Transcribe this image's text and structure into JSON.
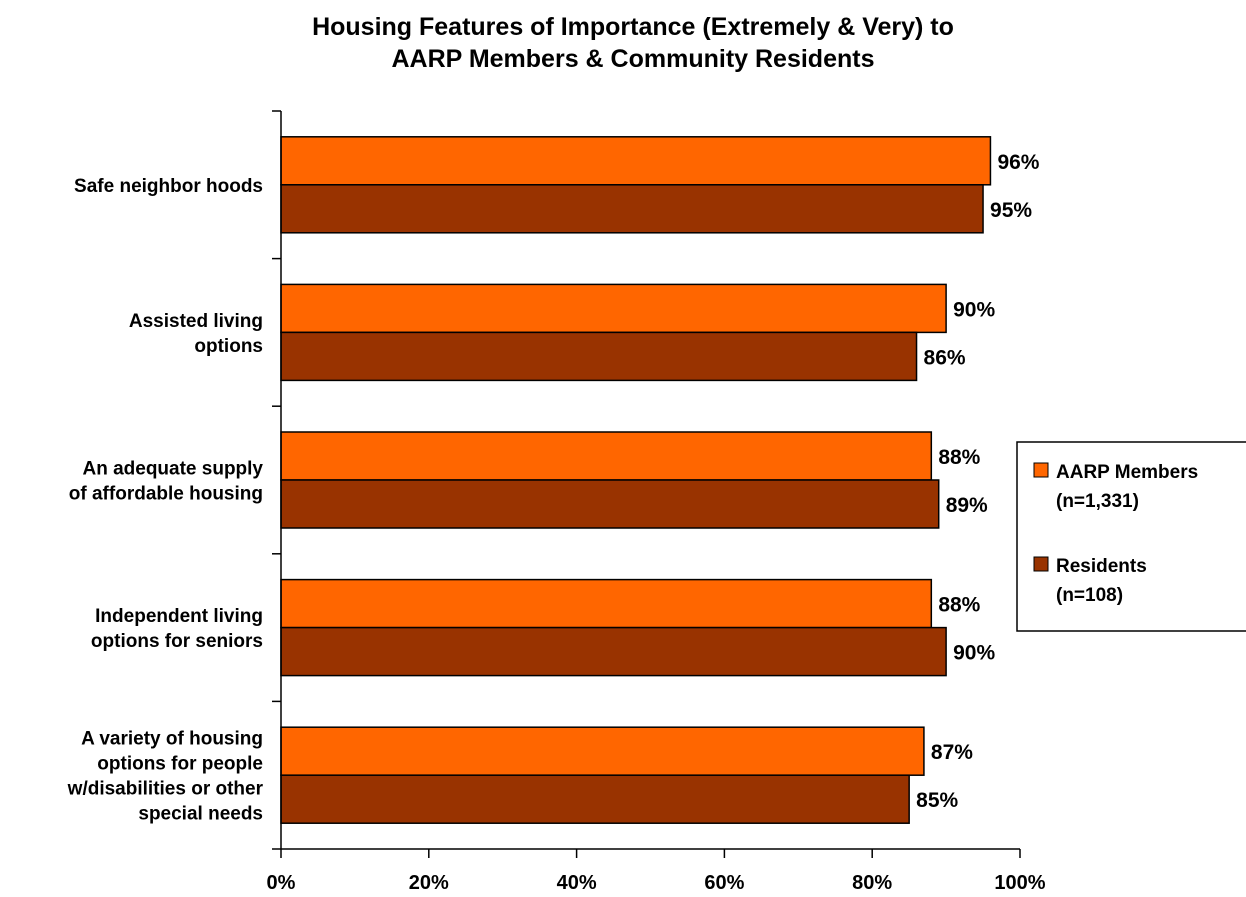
{
  "chart_data": {
    "type": "bar",
    "orientation": "horizontal",
    "title": [
      "Housing Features of Importance (Extremely & Very) to",
      "AARP Members & Community Residents"
    ],
    "categories": [
      [
        "Safe neighbor hoods"
      ],
      [
        "Assisted living",
        "options"
      ],
      [
        "An adequate supply",
        "of affordable housing"
      ],
      [
        "Independent living",
        "options for seniors"
      ],
      [
        "A variety of housing",
        "options for people",
        "w/disabilities or other",
        "special needs"
      ]
    ],
    "series": [
      {
        "name": [
          "AARP Members",
          "(n=1,331)"
        ],
        "color": "#FF6600",
        "values": [
          96,
          90,
          88,
          88,
          87
        ],
        "labels": [
          "96%",
          "90%",
          "88%",
          "88%",
          "87%"
        ]
      },
      {
        "name": [
          "Residents",
          "(n=108)"
        ],
        "color": "#993300",
        "values": [
          95,
          86,
          89,
          90,
          85
        ],
        "labels": [
          "95%",
          "86%",
          "89%",
          "90%",
          "85%"
        ]
      }
    ],
    "xlim": [
      0,
      100
    ],
    "xticks": [
      0,
      20,
      40,
      60,
      80,
      100
    ],
    "xtick_labels": [
      "0%",
      "20%",
      "40%",
      "60%",
      "80%",
      "100%"
    ],
    "xlabel": "",
    "ylabel": "",
    "grid": false,
    "legend_position": "right"
  }
}
